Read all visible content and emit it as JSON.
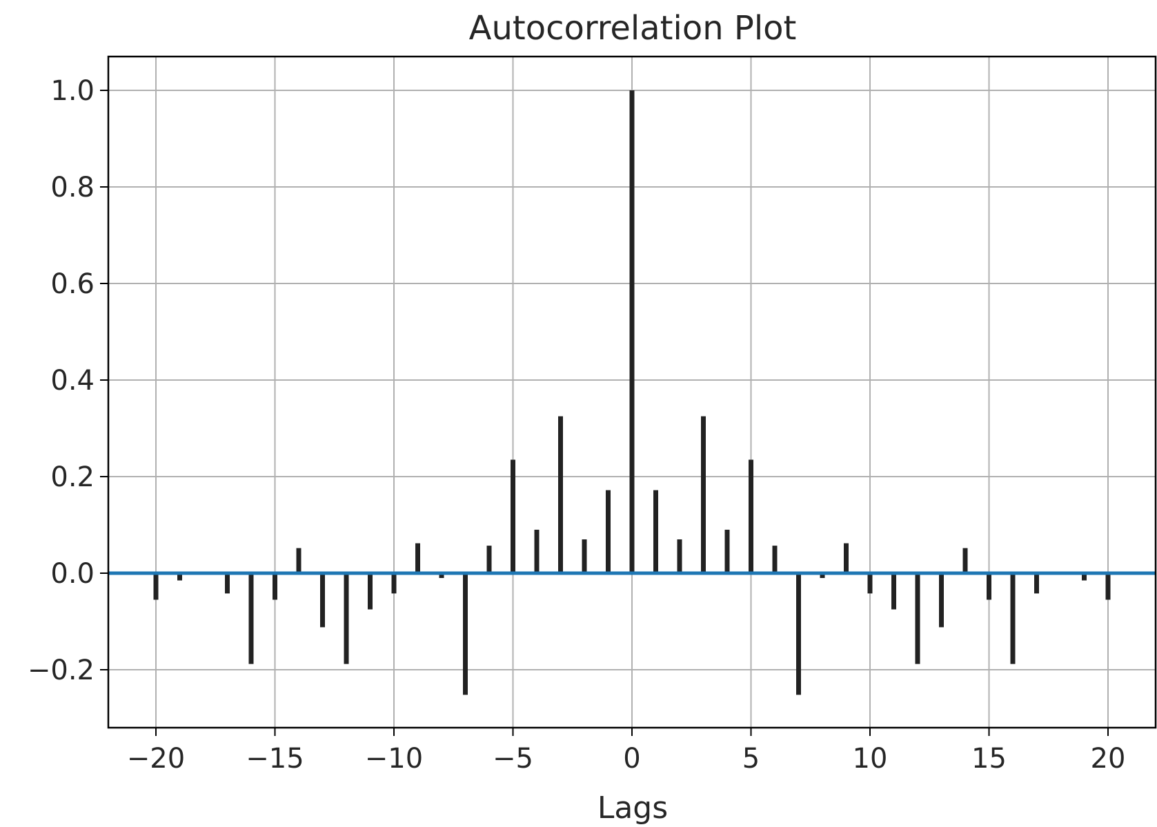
{
  "chart_data": {
    "type": "bar",
    "title": "Autocorrelation Plot",
    "xlabel": "Lags",
    "ylabel": "",
    "xlim": [
      -22,
      22
    ],
    "ylim": [
      -0.32,
      1.07
    ],
    "grid": true,
    "x_ticks": [
      -20,
      -15,
      -10,
      -5,
      0,
      5,
      10,
      15,
      20
    ],
    "x_tick_labels": [
      "−20",
      "−15",
      "−10",
      "−5",
      "0",
      "5",
      "10",
      "15",
      "20"
    ],
    "y_ticks": [
      -0.2,
      0.0,
      0.2,
      0.4,
      0.6,
      0.8,
      1.0
    ],
    "y_tick_labels": [
      "−0.2",
      "0.0",
      "0.2",
      "0.4",
      "0.6",
      "0.8",
      "1.0"
    ],
    "lags": [
      -20,
      -19,
      -18,
      -17,
      -16,
      -15,
      -14,
      -13,
      -12,
      -11,
      -10,
      -9,
      -8,
      -7,
      -6,
      -5,
      -4,
      -3,
      -2,
      -1,
      0,
      1,
      2,
      3,
      4,
      5,
      6,
      7,
      8,
      9,
      10,
      11,
      12,
      13,
      14,
      15,
      16,
      17,
      18,
      19,
      20
    ],
    "values": [
      -0.055,
      -0.015,
      0.0,
      -0.042,
      -0.188,
      -0.055,
      0.052,
      -0.112,
      -0.188,
      -0.075,
      -0.042,
      0.062,
      -0.01,
      -0.252,
      0.057,
      0.235,
      0.09,
      0.325,
      0.07,
      0.172,
      1.0,
      0.172,
      0.07,
      0.325,
      0.09,
      0.235,
      0.057,
      -0.252,
      -0.01,
      0.062,
      -0.042,
      -0.075,
      -0.188,
      -0.112,
      0.052,
      -0.055,
      -0.188,
      -0.042,
      0.0,
      -0.015,
      -0.055
    ],
    "colors": {
      "bars": "#222222",
      "baseline": "#1f77b4",
      "grid": "#b0b0b0",
      "frame": "#000000"
    }
  }
}
